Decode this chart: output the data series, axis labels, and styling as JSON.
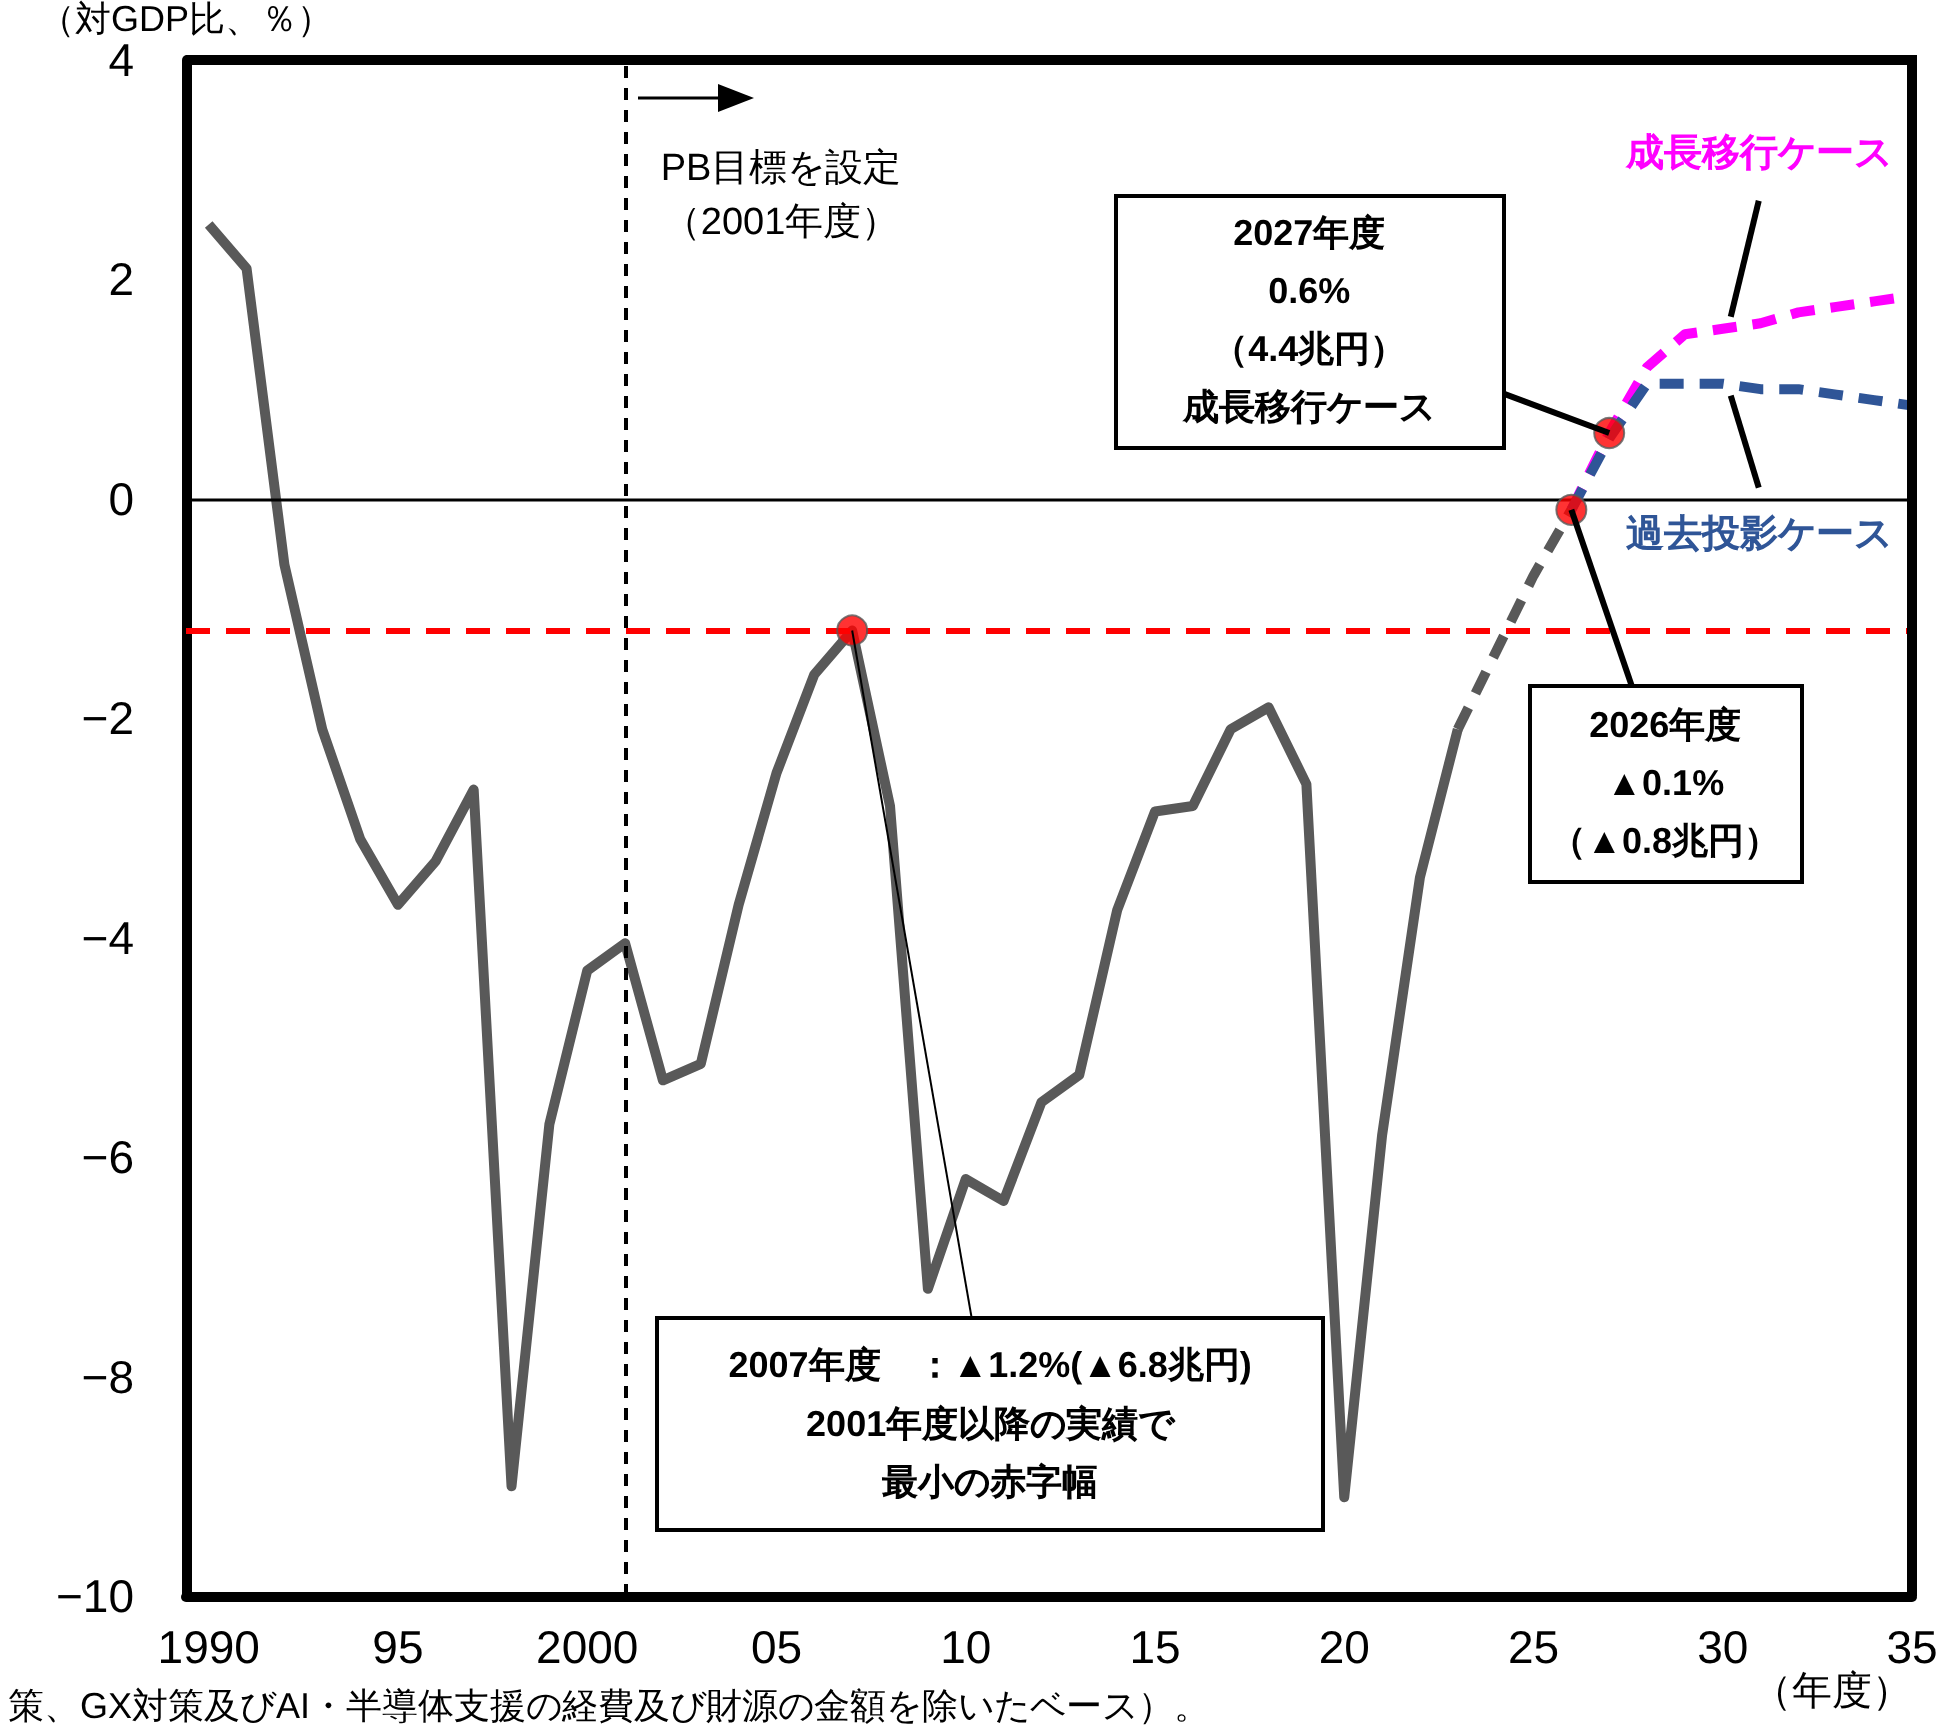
{
  "chart_data": {
    "type": "line",
    "ylabel": "（対GDP比、％）",
    "xlabel": "（年度）",
    "xlim": [
      1989.4,
      2035
    ],
    "xticks": [
      {
        "value": 1990,
        "label": "1990"
      },
      {
        "value": 1995,
        "label": "95"
      },
      {
        "value": 2000,
        "label": "2000"
      },
      {
        "value": 2005,
        "label": "05"
      },
      {
        "value": 2010,
        "label": "10"
      },
      {
        "value": 2015,
        "label": "15"
      },
      {
        "value": 2020,
        "label": "20"
      },
      {
        "value": 2025,
        "label": "25"
      },
      {
        "value": 2030,
        "label": "30"
      },
      {
        "value": 2035,
        "label": "35"
      }
    ],
    "ylim": [
      -10,
      4
    ],
    "yticks": [
      {
        "value": -10,
        "label": "−10"
      },
      {
        "value": -8,
        "label": "−8"
      },
      {
        "value": -6,
        "label": "−6"
      },
      {
        "value": -4,
        "label": "−4"
      },
      {
        "value": -2,
        "label": "−2"
      },
      0,
      2,
      4
    ],
    "grid": false,
    "legend": false,
    "marker": "none",
    "series": [
      {
        "color": "#595959",
        "line_style": "solid",
        "x": [
          1990,
          1991,
          1992,
          1993,
          1994,
          1995,
          1996,
          1997,
          1998,
          1999,
          2000,
          2001,
          2002,
          2003,
          2004,
          2005,
          2006,
          2007,
          2008,
          2009,
          2010,
          2011,
          2012,
          2013,
          2014,
          2015,
          2016,
          2017,
          2018,
          2019,
          2020,
          2021,
          2022,
          2023
        ],
        "values": [
          2.5,
          2.1,
          -0.6,
          -2.1,
          -3.1,
          -3.7,
          -3.3,
          -2.65,
          -9.0,
          -5.7,
          -4.3,
          -4.05,
          -5.3,
          -5.15,
          -3.7,
          -2.5,
          -1.6,
          -1.2,
          -2.8,
          -7.2,
          -6.2,
          -6.4,
          -5.5,
          -5.25,
          -3.75,
          -2.85,
          -2.8,
          -2.1,
          -1.9,
          -2.6,
          -9.1,
          -5.8,
          -3.45,
          -2.1
        ]
      },
      {
        "color": "#595959",
        "line_style": "dashed",
        "x": [
          2023,
          2024,
          2025,
          2026
        ],
        "values": [
          -2.1,
          -1.4,
          -0.7,
          -0.1
        ]
      },
      {
        "name": "成長移行ケース",
        "color": "#ff00ff",
        "line_style": "dashed",
        "x": [
          2026,
          2027,
          2028,
          2029,
          2030,
          2031,
          2032,
          2033,
          2034,
          2035
        ],
        "values": [
          -0.1,
          0.6,
          1.2,
          1.5,
          1.55,
          1.6,
          1.7,
          1.75,
          1.8,
          1.85
        ]
      },
      {
        "name": "過去投影ケース",
        "color": "#2f5597",
        "line_style": "dashed",
        "x": [
          2026,
          2027,
          2028,
          2029,
          2030,
          2031,
          2032,
          2033,
          2034,
          2035
        ],
        "values": [
          -0.1,
          0.55,
          1.05,
          1.05,
          1.05,
          1.0,
          1.0,
          0.95,
          0.9,
          0.85
        ]
      },
      {
        "type": "scatter",
        "marker": "circle",
        "color": "#ff0000",
        "x": [
          2007,
          2026,
          2027
        ],
        "values": [
          -1.2,
          -0.1,
          0.6
        ]
      }
    ],
    "ref_lines": [
      {
        "axis": "y",
        "value": 0,
        "color": "#000000",
        "line_style": "solid"
      },
      {
        "axis": "y",
        "value": -1.2,
        "color": "#ff0000",
        "line_style": "dashed"
      },
      {
        "axis": "x",
        "value": 2001,
        "color": "#000000",
        "line_style": "dashed",
        "label": "PB目標を設定（2001年度）"
      }
    ],
    "annotations": [
      {
        "text": "2007年度　：▲1.2%(▲6.8兆円)",
        "x": 2007,
        "y": -1.2
      },
      {
        "text": "2001年度以降の実績で最小の赤字幅",
        "x": 2007,
        "y": -1.2
      },
      {
        "text": "2027年度\n0.6%\n（4.4兆円）",
        "x": 2027,
        "y": 0.6
      },
      "成長移行ケース",
      {
        "text": "2026年度\n▲0.1%\n（▲0.8兆円）",
        "x": 2026,
        "y": -0.1
      },
      "策、GX対策及びAI・半導体支援の経費及び財源の金額を除いたベース）。"
    ]
  }
}
